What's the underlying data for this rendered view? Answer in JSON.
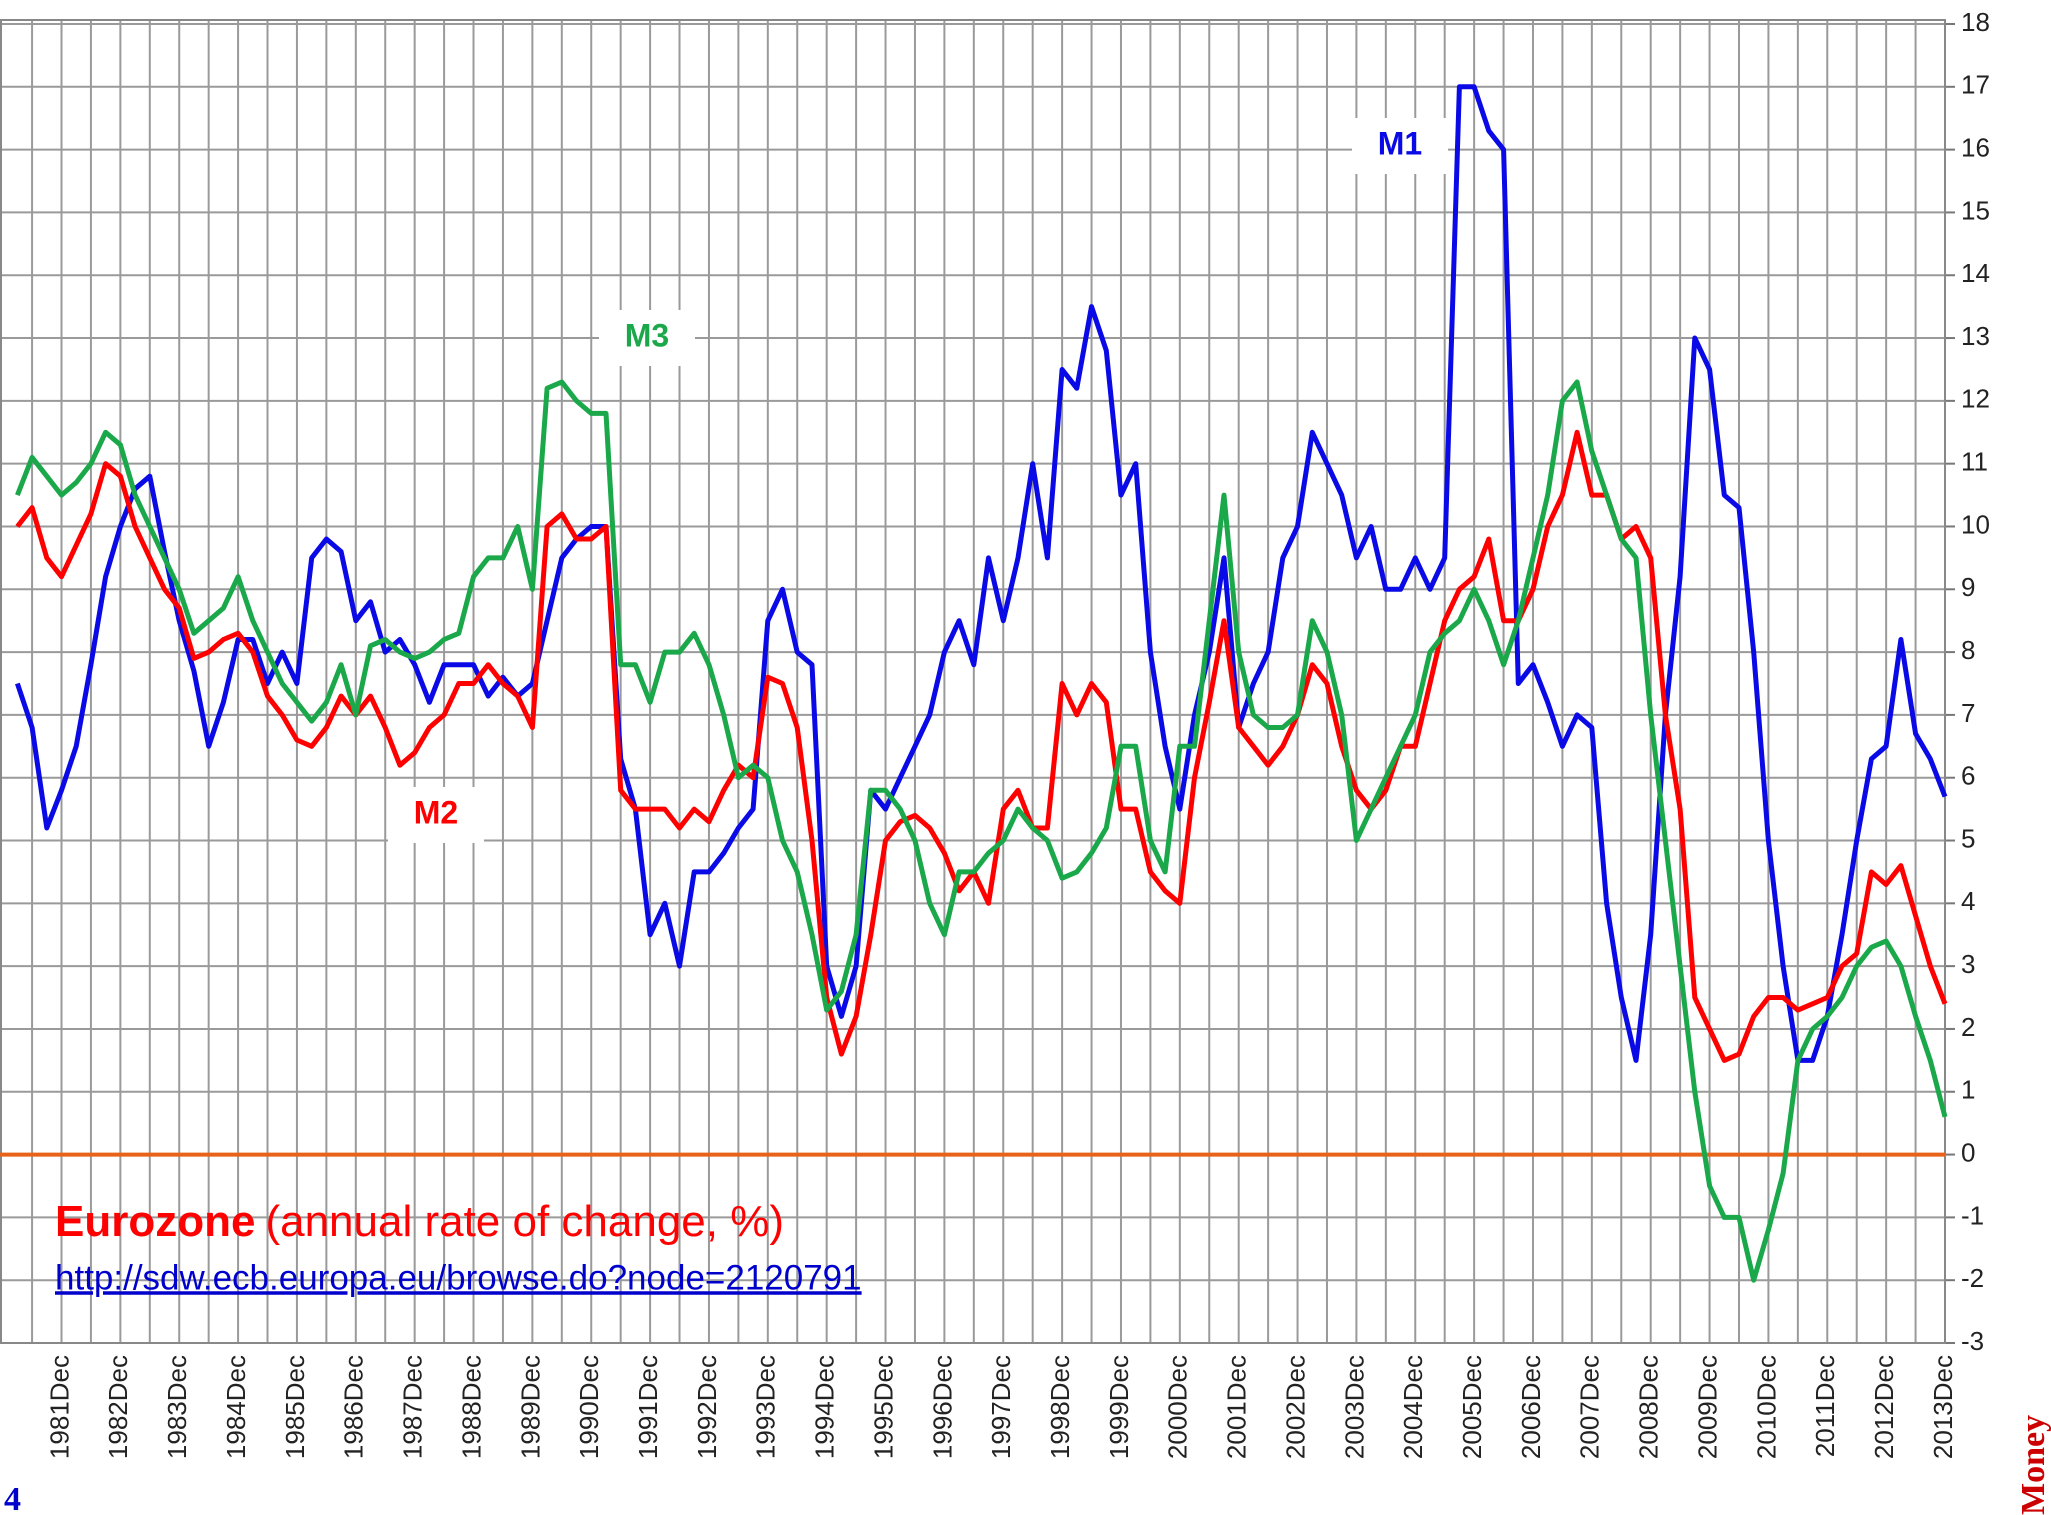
{
  "chart_data": {
    "type": "line",
    "title": "Eurozone",
    "subtitle": "(annual rate of change, %)",
    "source": "http://sdw.ecb.europa.eu/browse.do?node=2120791",
    "categories": [
      null,
      null,
      null,
      "1981Dec",
      null,
      null,
      null,
      "1982Dec",
      null,
      null,
      null,
      "1983Dec",
      null,
      null,
      null,
      "1984Dec",
      null,
      null,
      null,
      "1985Dec",
      null,
      null,
      null,
      "1986Dec",
      null,
      null,
      null,
      "1987Dec",
      null,
      null,
      null,
      "1988Dec",
      null,
      null,
      null,
      "1989Dec",
      null,
      null,
      null,
      "1990Dec",
      null,
      null,
      null,
      "1991Dec",
      null,
      null,
      null,
      "1992Dec",
      null,
      null,
      null,
      "1993Dec",
      null,
      null,
      null,
      "1994Dec",
      null,
      null,
      null,
      "1995Dec",
      null,
      null,
      null,
      "1996Dec",
      null,
      null,
      null,
      "1997Dec",
      null,
      null,
      null,
      "1998Dec",
      null,
      null,
      null,
      "1999Dec",
      null,
      null,
      null,
      "2000Dec",
      null,
      null,
      null,
      "2001Dec",
      null,
      null,
      null,
      "2002Dec",
      null,
      null,
      null,
      "2003Dec",
      null,
      null,
      null,
      "2004Dec",
      null,
      null,
      null,
      "2005Dec",
      null,
      null,
      null,
      "2006Dec",
      null,
      null,
      null,
      "2007Dec",
      null,
      null,
      null,
      "2008Dec",
      null,
      null,
      null,
      "2009Dec",
      null,
      null,
      null,
      "2010Dec",
      null,
      null,
      null,
      "2011Dec",
      null,
      null,
      null,
      "2012Dec",
      null,
      null,
      null,
      "2013Dec"
    ],
    "series": [
      {
        "name": "M1",
        "color": "#0a0ae6",
        "values": [
          7.5,
          6.8,
          5.2,
          5.8,
          6.5,
          7.8,
          9.2,
          10.0,
          10.6,
          10.8,
          9.6,
          8.5,
          7.7,
          6.5,
          7.2,
          8.2,
          8.2,
          7.5,
          8.0,
          7.5,
          9.5,
          9.8,
          9.6,
          8.5,
          8.8,
          8.0,
          8.2,
          7.8,
          7.2,
          7.8,
          7.8,
          7.8,
          7.3,
          7.6,
          7.3,
          7.5,
          8.5,
          9.5,
          9.8,
          10.0,
          10.0,
          6.3,
          5.5,
          3.5,
          4.0,
          3.0,
          4.5,
          4.5,
          4.8,
          5.2,
          5.5,
          8.5,
          9.0,
          8.0,
          7.8,
          3.0,
          2.2,
          3.0,
          5.8,
          5.5,
          6.0,
          6.5,
          7.0,
          8.0,
          8.5,
          7.8,
          9.5,
          8.5,
          9.5,
          11.0,
          9.5,
          12.5,
          12.2,
          13.5,
          12.8,
          10.5,
          11.0,
          8.0,
          6.5,
          5.5,
          7.0,
          8.0,
          9.5,
          6.8,
          7.5,
          8.0,
          9.5,
          10.0,
          11.5,
          11.0,
          10.5,
          9.5,
          10.0,
          9.0,
          9.0,
          9.5,
          9.0,
          9.5,
          17.0,
          17.0,
          16.3,
          16.0,
          7.5,
          7.8,
          7.2,
          6.5,
          7.0,
          6.8,
          4.0,
          2.5,
          1.5,
          3.5,
          7.0,
          9.2,
          13.0,
          12.5,
          10.5,
          10.3,
          8.0,
          5.0,
          3.0,
          1.5,
          1.5,
          2.2,
          3.5,
          5.0,
          6.3,
          6.5,
          8.2,
          6.7,
          6.3,
          5.7
        ]
      },
      {
        "name": "M2",
        "color": "#ff0000",
        "values": [
          10.0,
          10.3,
          9.5,
          9.2,
          9.7,
          10.2,
          11.0,
          10.8,
          10.0,
          9.5,
          9.0,
          8.7,
          7.9,
          8.0,
          8.2,
          8.3,
          8.0,
          7.3,
          7.0,
          6.6,
          6.5,
          6.8,
          7.3,
          7.0,
          7.3,
          6.8,
          6.2,
          6.4,
          6.8,
          7.0,
          7.5,
          7.5,
          7.8,
          7.5,
          7.3,
          6.8,
          10.0,
          10.2,
          9.8,
          9.8,
          10.0,
          5.8,
          5.5,
          5.5,
          5.5,
          5.2,
          5.5,
          5.3,
          5.8,
          6.2,
          6.0,
          7.6,
          7.5,
          6.8,
          5.0,
          2.5,
          1.6,
          2.2,
          3.5,
          5.0,
          5.3,
          5.4,
          5.2,
          4.8,
          4.2,
          4.5,
          4.0,
          5.5,
          5.8,
          5.2,
          5.2,
          7.5,
          7.0,
          7.5,
          7.2,
          5.5,
          5.5,
          4.5,
          4.2,
          4.0,
          6.0,
          7.2,
          8.5,
          6.8,
          6.5,
          6.2,
          6.5,
          7.0,
          7.8,
          7.5,
          6.5,
          5.8,
          5.5,
          5.8,
          6.5,
          6.5,
          7.5,
          8.5,
          9.0,
          9.2,
          9.8,
          8.5,
          8.5,
          9.0,
          10.0,
          10.5,
          11.5,
          10.5,
          10.5,
          9.8,
          10.0,
          9.5,
          7.0,
          5.5,
          2.5,
          2.0,
          1.5,
          1.6,
          2.2,
          2.5,
          2.5,
          2.3,
          2.4,
          2.5,
          3.0,
          3.2,
          4.5,
          4.3,
          4.6,
          3.8,
          3.0,
          2.4
        ]
      },
      {
        "name": "M3",
        "color": "#1aa84a",
        "values": [
          10.5,
          11.1,
          10.8,
          10.5,
          10.7,
          11.0,
          11.5,
          11.3,
          10.5,
          10.0,
          9.5,
          9.0,
          8.3,
          8.5,
          8.7,
          9.2,
          8.5,
          8.0,
          7.5,
          7.2,
          6.9,
          7.2,
          7.8,
          7.0,
          8.1,
          8.2,
          8.0,
          7.9,
          8.0,
          8.2,
          8.3,
          9.2,
          9.5,
          9.5,
          10.0,
          9.0,
          12.2,
          12.3,
          12.0,
          11.8,
          11.8,
          7.8,
          7.8,
          7.2,
          8.0,
          8.0,
          8.3,
          7.8,
          7.0,
          6.0,
          6.2,
          6.0,
          5.0,
          4.5,
          3.5,
          2.3,
          2.6,
          3.5,
          5.8,
          5.8,
          5.5,
          5.0,
          4.0,
          3.5,
          4.5,
          4.5,
          4.8,
          5.0,
          5.5,
          5.2,
          5.0,
          4.4,
          4.5,
          4.8,
          5.2,
          6.5,
          6.5,
          5.0,
          4.5,
          6.5,
          6.5,
          8.5,
          10.5,
          8.0,
          7.0,
          6.8,
          6.8,
          7.0,
          8.5,
          8.0,
          7.0,
          5.0,
          5.5,
          6.0,
          6.5,
          7.0,
          8.0,
          8.3,
          8.5,
          9.0,
          8.5,
          7.8,
          8.5,
          9.5,
          10.5,
          12.0,
          12.3,
          11.2,
          10.5,
          9.8,
          9.5,
          7.0,
          5.0,
          3.0,
          1.0,
          -0.5,
          -1.0,
          -1.0,
          -2.0,
          -1.2,
          -0.3,
          1.5,
          2.0,
          2.2,
          2.5,
          3.0,
          3.3,
          3.4,
          3.0,
          2.2,
          1.5,
          0.6
        ]
      }
    ],
    "ylim": [
      -3,
      18
    ],
    "yticks": [
      -3,
      -2,
      -1,
      0,
      1,
      2,
      3,
      4,
      5,
      6,
      7,
      8,
      9,
      10,
      11,
      12,
      13,
      14,
      15,
      16,
      17,
      18
    ],
    "grid": true,
    "zero_line_color": "#e8621a"
  },
  "page_number": "4",
  "side_label": "Money"
}
